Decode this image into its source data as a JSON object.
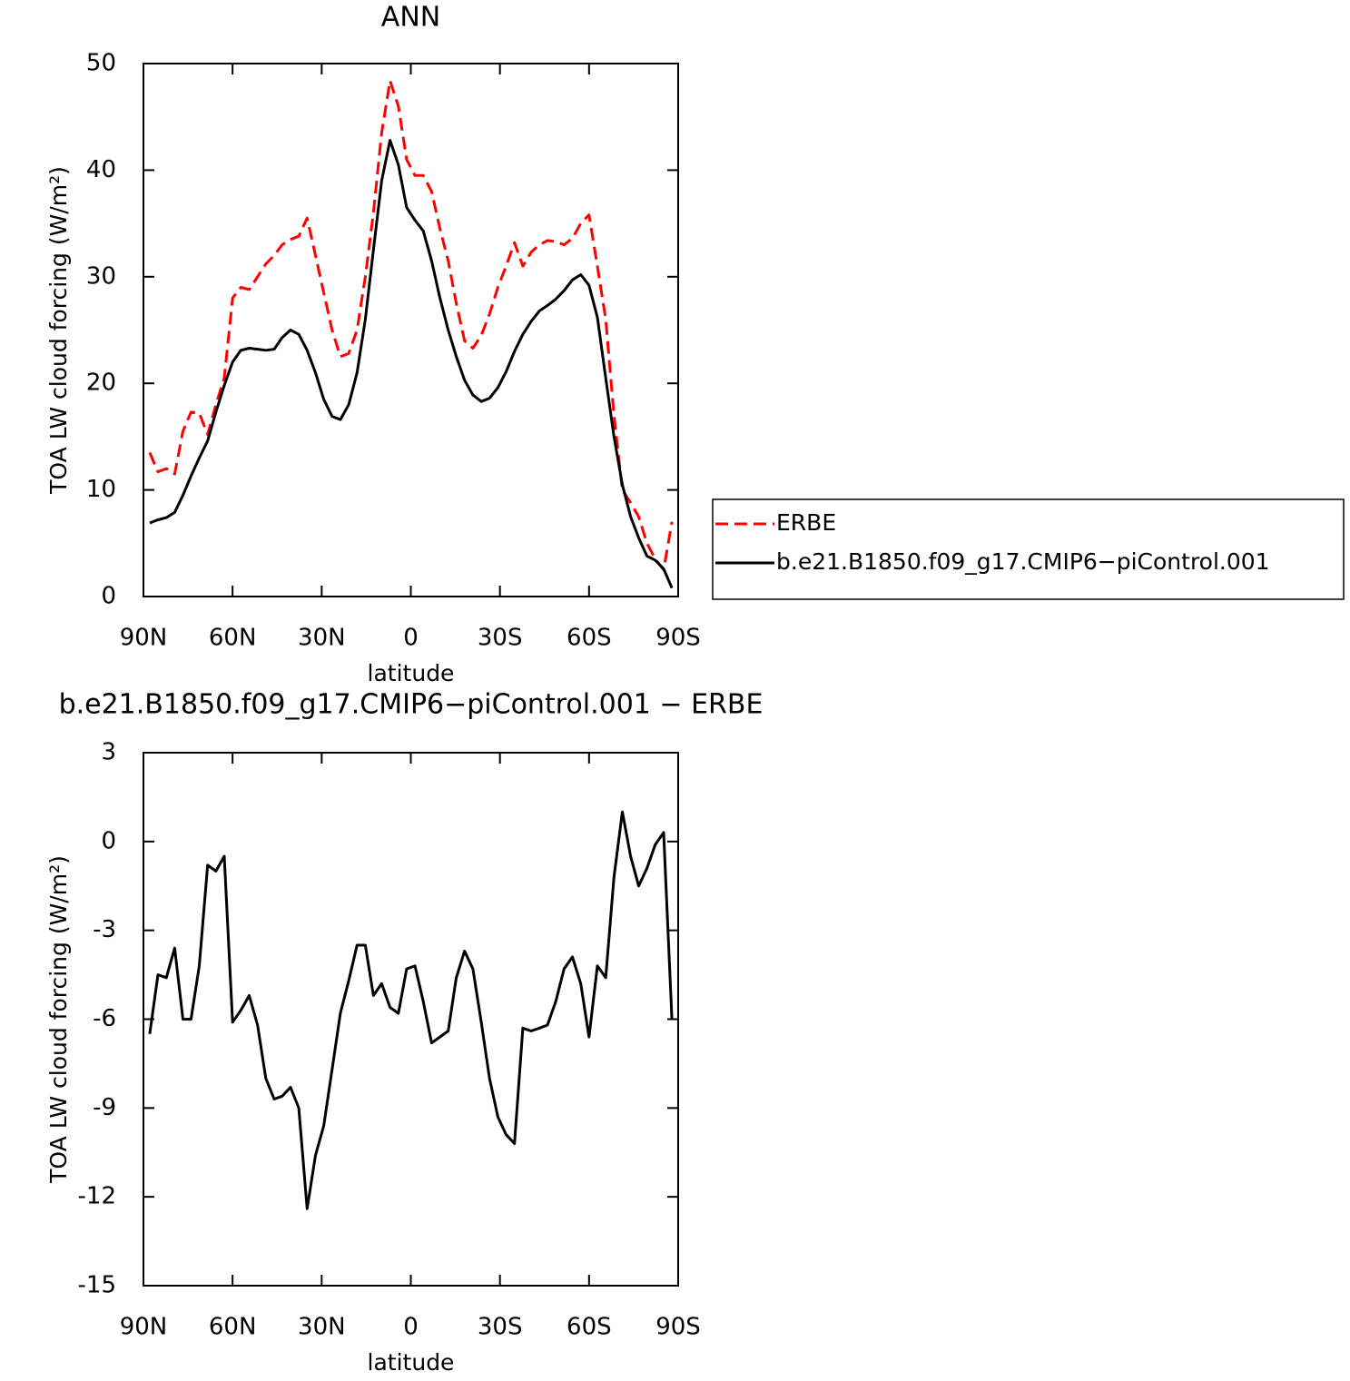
{
  "chart_data": [
    {
      "type": "line",
      "title": "ANN",
      "xlabel": "latitude",
      "ylabel": "TOA LW cloud forcing (W/m²)",
      "x": [
        87.9,
        85.1,
        82.3,
        79.5,
        76.7,
        74.0,
        71.2,
        68.4,
        65.6,
        62.8,
        60.0,
        57.2,
        54.4,
        51.6,
        48.8,
        46.0,
        43.3,
        40.5,
        37.7,
        34.9,
        32.1,
        29.3,
        26.5,
        23.7,
        20.9,
        18.1,
        15.3,
        12.6,
        9.8,
        7.0,
        4.2,
        1.4,
        -1.4,
        -4.2,
        -7.0,
        -9.8,
        -12.6,
        -15.3,
        -18.1,
        -20.9,
        -23.7,
        -26.5,
        -29.3,
        -32.1,
        -34.9,
        -37.7,
        -40.5,
        -43.3,
        -46.0,
        -48.8,
        -51.6,
        -54.4,
        -57.2,
        -60.0,
        -62.8,
        -65.6,
        -68.4,
        -71.2,
        -74.0,
        -76.7,
        -79.5,
        -82.3,
        -85.1,
        -87.9
      ],
      "series": [
        {
          "name": "ERBE",
          "color": "#ff0000",
          "dashed": true,
          "values": [
            13.5,
            11.7,
            12.0,
            11.5,
            15.5,
            17.3,
            17.2,
            15.2,
            18.0,
            20.5,
            28.0,
            29.0,
            28.8,
            30.0,
            31.2,
            32.0,
            33.0,
            33.5,
            33.8,
            35.5,
            32.0,
            28.5,
            25.0,
            22.5,
            22.8,
            25.0,
            30.0,
            36.0,
            43.5,
            48.4,
            46.0,
            41.0,
            39.5,
            39.5,
            38.0,
            34.5,
            31.5,
            27.5,
            24.0,
            23.3,
            24.5,
            26.5,
            29.0,
            31.0,
            33.2,
            31.0,
            32.3,
            33.0,
            33.4,
            33.3,
            33.0,
            33.6,
            35.0,
            35.8,
            31.0,
            26.0,
            17.0,
            10.0,
            8.8,
            7.5,
            5.0,
            3.5,
            2.5,
            7.0
          ]
        },
        {
          "name": "b.e21.B1850.f09_g17.CMIP6−piControl.001",
          "color": "#000000",
          "dashed": false,
          "values": [
            6.9,
            7.2,
            7.4,
            7.9,
            9.5,
            11.3,
            13.0,
            14.6,
            17.3,
            19.8,
            22.0,
            23.1,
            23.3,
            23.2,
            23.1,
            23.2,
            24.3,
            25.0,
            24.6,
            23.1,
            21.0,
            18.5,
            16.9,
            16.6,
            18.0,
            21.0,
            26.0,
            32.5,
            39.0,
            42.8,
            40.5,
            36.5,
            35.3,
            34.3,
            31.5,
            28.0,
            25.0,
            22.5,
            20.3,
            18.9,
            18.3,
            18.6,
            19.6,
            21.1,
            23.0,
            24.6,
            25.8,
            26.8,
            27.3,
            27.9,
            28.7,
            29.7,
            30.2,
            29.2,
            26.2,
            20.5,
            15.0,
            10.5,
            7.5,
            5.5,
            3.8,
            3.4,
            2.6,
            0.8
          ]
        }
      ],
      "xlim": [
        90,
        -90
      ],
      "xticks": [
        {
          "value": 90,
          "label": "90N"
        },
        {
          "value": 60,
          "label": "60N"
        },
        {
          "value": 30,
          "label": "30N"
        },
        0,
        {
          "value": -30,
          "label": "30S"
        },
        {
          "value": -60,
          "label": "60S"
        },
        {
          "value": -90,
          "label": "90S"
        }
      ],
      "ylim": [
        0,
        50
      ],
      "yticks": [
        0,
        10,
        20,
        30,
        40,
        50
      ],
      "legend": "right"
    },
    {
      "type": "line",
      "title": "b.e21.B1850.f09_g17.CMIP6−piControl.001  −  ERBE",
      "xlabel": "latitude",
      "ylabel": "TOA LW cloud forcing (W/m²)",
      "x": [
        87.9,
        85.1,
        82.3,
        79.5,
        76.7,
        74.0,
        71.2,
        68.4,
        65.6,
        62.8,
        60.0,
        57.2,
        54.4,
        51.6,
        48.8,
        46.0,
        43.3,
        40.5,
        37.7,
        34.9,
        32.1,
        29.3,
        26.5,
        23.7,
        20.9,
        18.1,
        15.3,
        12.6,
        9.8,
        7.0,
        4.2,
        1.4,
        -1.4,
        -4.2,
        -7.0,
        -9.8,
        -12.6,
        -15.3,
        -18.1,
        -20.9,
        -23.7,
        -26.5,
        -29.3,
        -32.1,
        -34.9,
        -37.7,
        -40.5,
        -43.3,
        -46.0,
        -48.8,
        -51.6,
        -54.4,
        -57.2,
        -60.0,
        -62.8,
        -65.6,
        -68.4,
        -71.2,
        -74.0,
        -76.7,
        -79.5,
        -82.3,
        -85.1,
        -87.9
      ],
      "values": [
        -6.5,
        -4.5,
        -4.6,
        -3.6,
        -6.0,
        -6.0,
        -4.2,
        -0.8,
        -1.0,
        -0.5,
        -6.1,
        -5.7,
        -5.2,
        -6.2,
        -8.0,
        -8.7,
        -8.6,
        -8.3,
        -9.0,
        -12.4,
        -10.6,
        -9.6,
        -7.7,
        -5.8,
        -4.7,
        -3.5,
        -3.5,
        -5.2,
        -4.8,
        -5.6,
        -5.8,
        -4.3,
        -4.2,
        -5.4,
        -6.8,
        -6.6,
        -6.4,
        -4.6,
        -3.7,
        -4.3,
        -6.1,
        -8.0,
        -9.3,
        -9.9,
        -10.2,
        -6.3,
        -6.4,
        -6.3,
        -6.2,
        -5.4,
        -4.3,
        -3.9,
        -4.8,
        -6.6,
        -4.2,
        -4.6,
        -1.2,
        1.0,
        -0.5,
        -1.5,
        -0.9,
        -0.1,
        0.3,
        -6.0
      ],
      "color": "#000000",
      "xlim": [
        90,
        -90
      ],
      "xticks": [
        {
          "value": 90,
          "label": "90N"
        },
        {
          "value": 60,
          "label": "60N"
        },
        {
          "value": 30,
          "label": "30N"
        },
        0,
        {
          "value": -30,
          "label": "30S"
        },
        {
          "value": -60,
          "label": "60S"
        },
        {
          "value": -90,
          "label": "90S"
        }
      ],
      "ylim": [
        -15,
        3
      ],
      "yticks": [
        3,
        0,
        -3,
        -6,
        -9,
        -12,
        -15
      ]
    }
  ]
}
